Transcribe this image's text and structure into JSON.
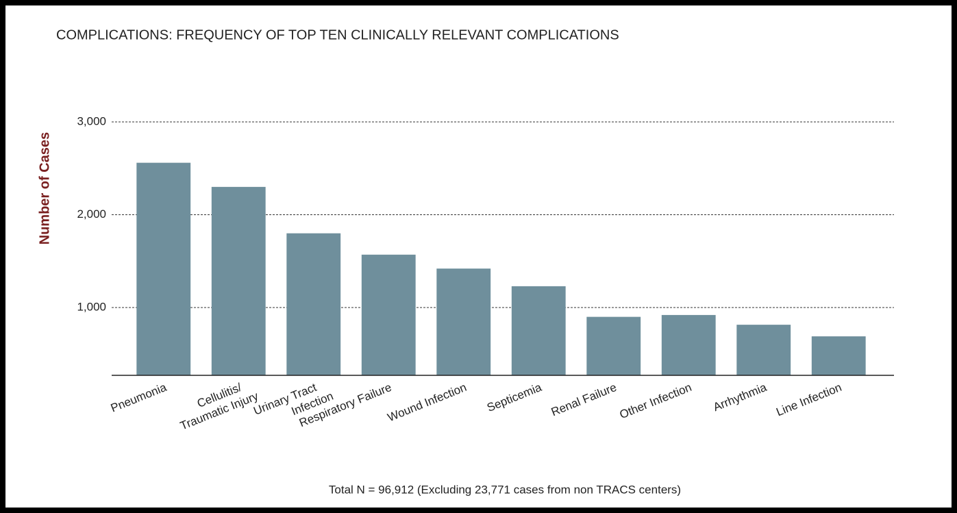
{
  "chart_data": {
    "type": "bar",
    "title": "COMPLICATIONS: FREQUENCY OF TOP TEN CLINICALLY RELEVANT COMPLICATIONS",
    "y_label": "Number of Cases",
    "note": "Total N = 96,912 (Excluding 23,771 cases from non TRACS centers)",
    "categories": [
      "Pneumonia",
      "Cellulitis/\nTraumatic Injury",
      "Urinary Tract\nInfection",
      "Respiratory Failure",
      "Wound Infection",
      "Septicemia",
      "Renal Failure",
      "Other Infection",
      "Arrhythmia",
      "Line Infection"
    ],
    "values": [
      2560,
      2300,
      1800,
      1570,
      1420,
      1230,
      900,
      920,
      815,
      690
    ],
    "color": "#6f8f9c",
    "ylim": [
      270,
      3000
    ],
    "yticks": [
      {
        "value": 1000,
        "label": "1,000"
      },
      {
        "value": 2000,
        "label": "2,000"
      },
      {
        "value": 3000,
        "label": "3,000"
      }
    ],
    "grid": true
  }
}
